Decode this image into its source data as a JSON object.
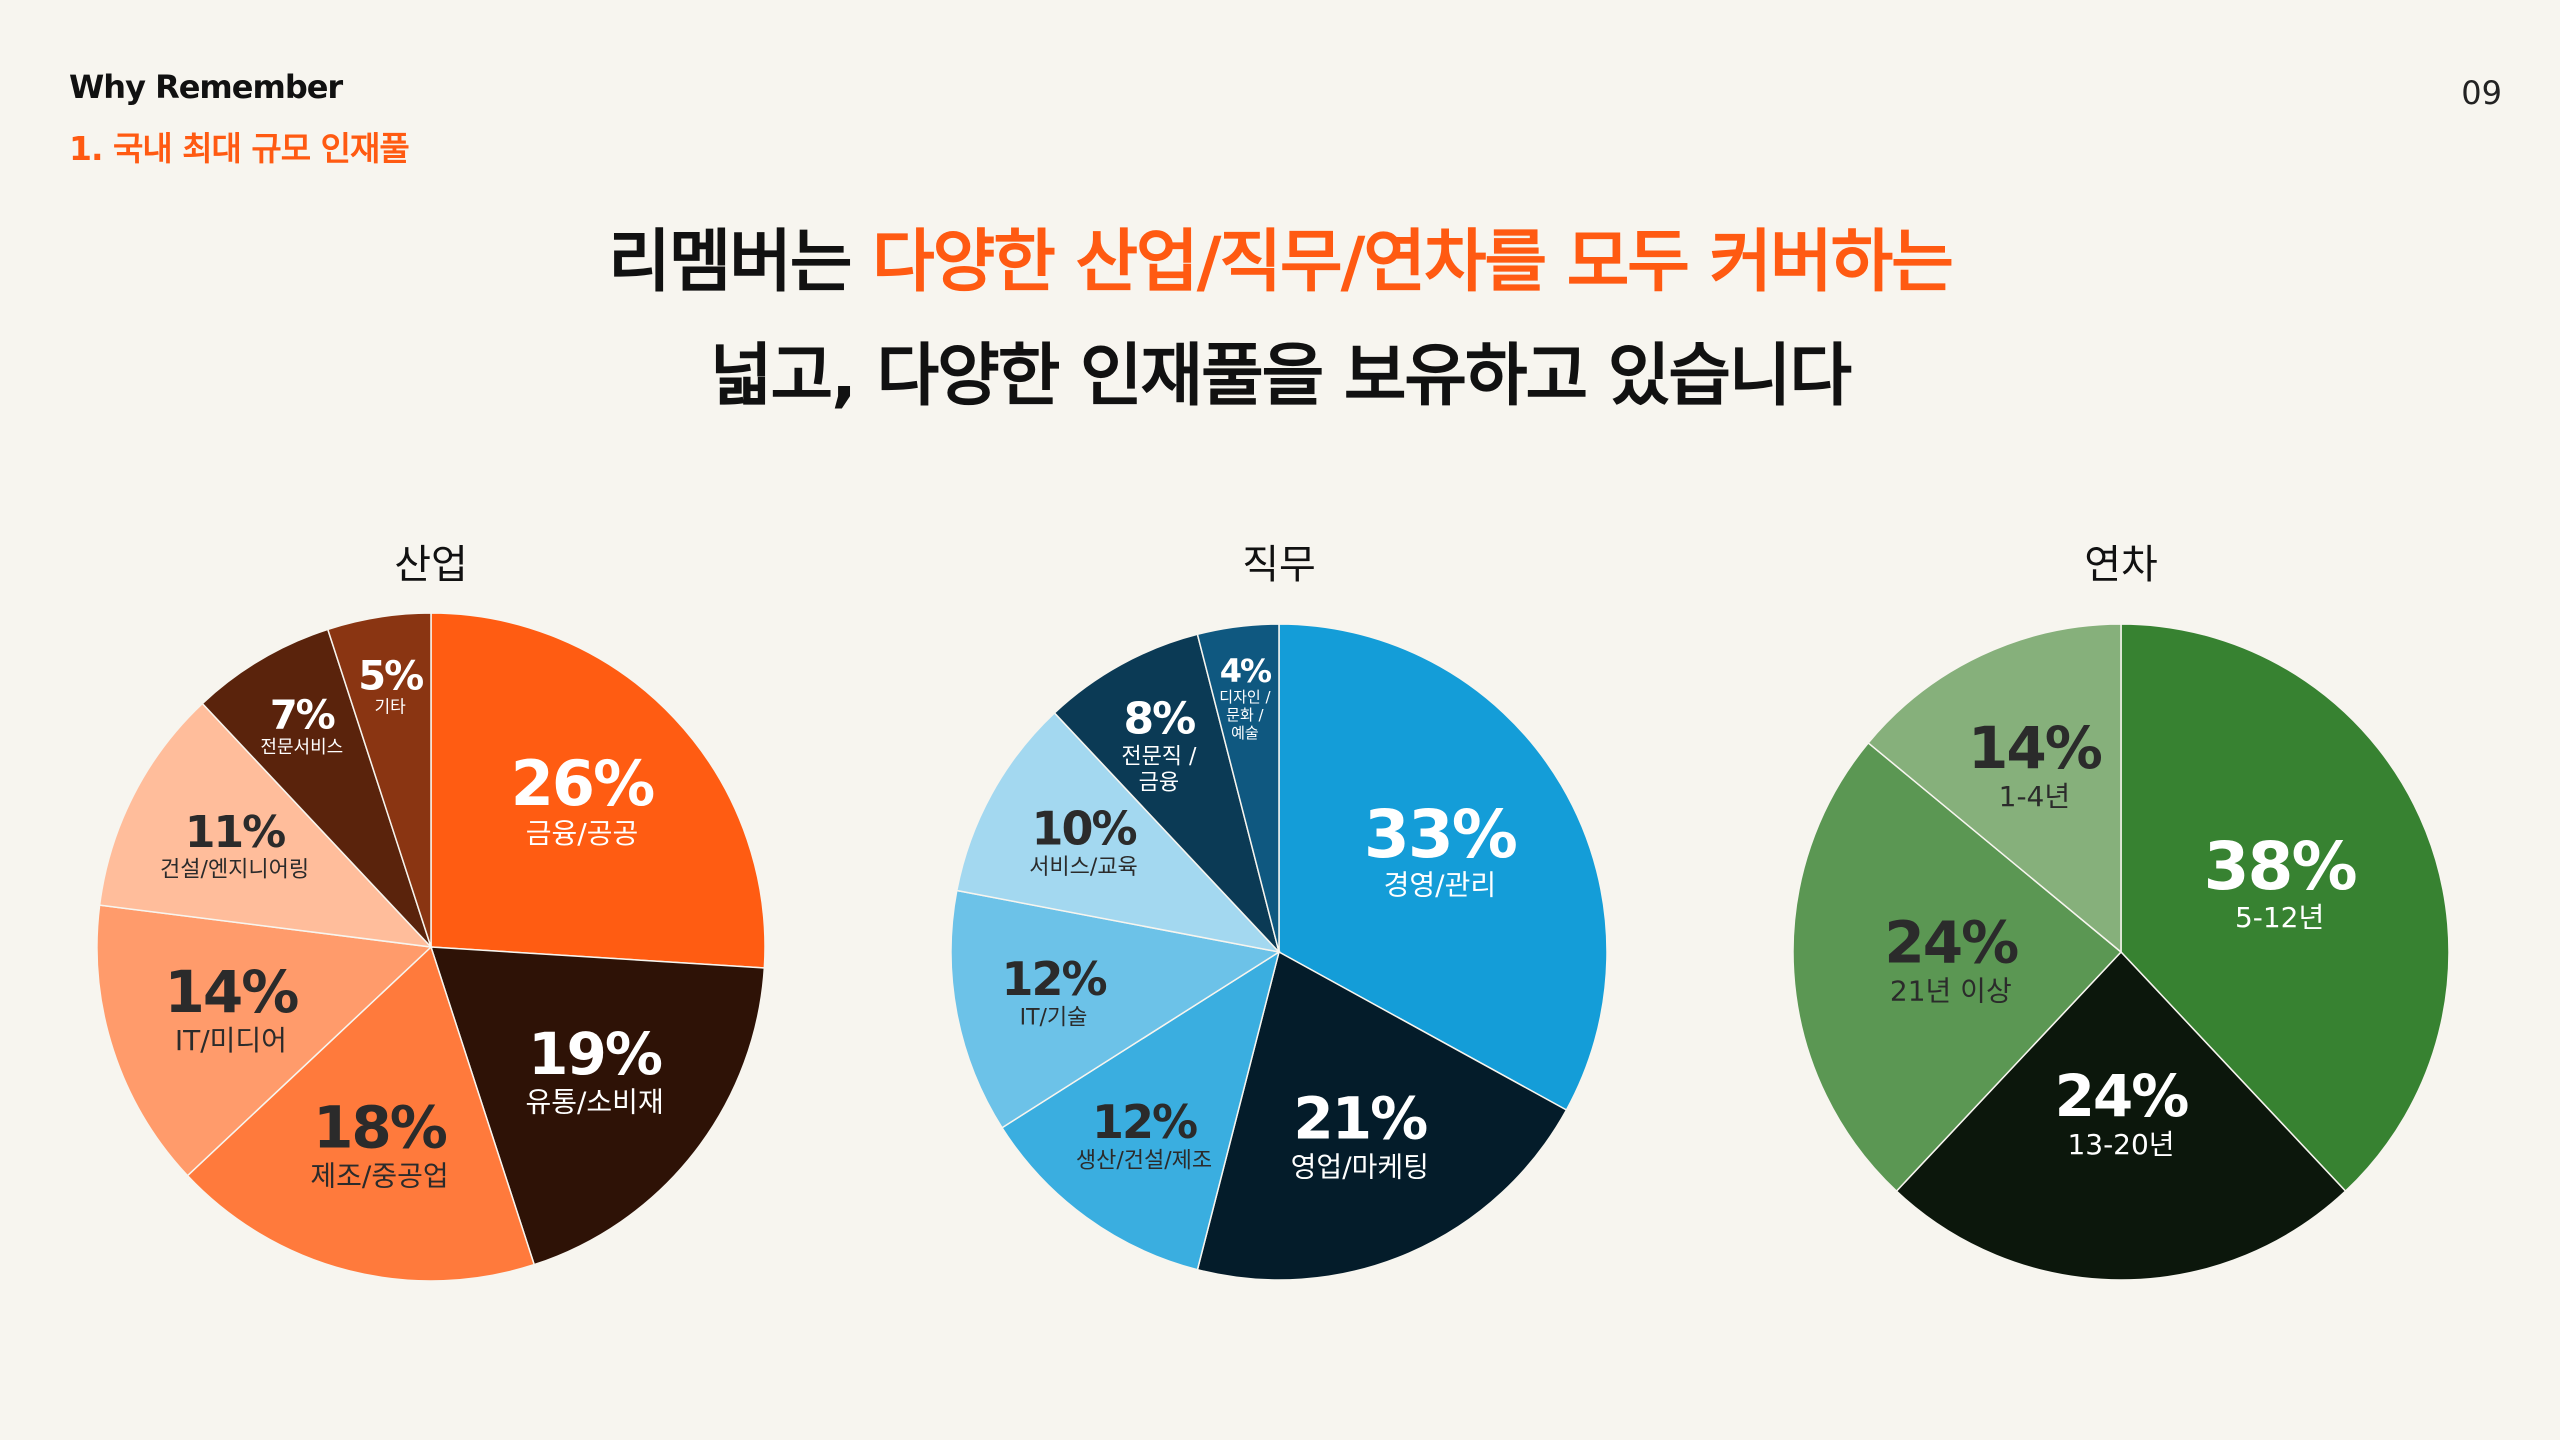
{
  "header": {
    "brand": "Why Remember",
    "section": "1. 국내 최대 규모 인재풀",
    "page_number": "09"
  },
  "headline": {
    "line1_pre": "리멤버는 ",
    "line1_accent": "다양한 산업/직무/연차를 모두 커버하는",
    "line2": "넓고, 다양한 인재풀을 보유하고 있습니다"
  },
  "colors": {
    "accent": "#ff5a12",
    "background": "#f7f5ef"
  },
  "chart_data": [
    {
      "type": "pie",
      "title": "산업",
      "slices": [
        {
          "pct": "26%",
          "label": "금융/공공",
          "value": 26,
          "color": "#ff5c12",
          "text": "#ffffff"
        },
        {
          "pct": "19%",
          "label": "유통/소비재",
          "value": 19,
          "color": "#2e1206",
          "text": "#ffffff"
        },
        {
          "pct": "18%",
          "label": "제조/중공업",
          "value": 18,
          "color": "#ff7a3c",
          "text": "#2b2b2b"
        },
        {
          "pct": "14%",
          "label": "IT/미디어",
          "value": 14,
          "color": "#ff9b6b",
          "text": "#2b2b2b"
        },
        {
          "pct": "11%",
          "label": "건설/엔지니어링",
          "value": 11,
          "color": "#ffbd9b",
          "text": "#2b2b2b"
        },
        {
          "pct": "7%",
          "label": "전문서비스",
          "value": 7,
          "color": "#5a230c",
          "text": "#ffffff"
        },
        {
          "pct": "5%",
          "label": "기타",
          "value": 5,
          "color": "#8a3512",
          "text": "#ffffff"
        }
      ]
    },
    {
      "type": "pie",
      "title": "직무",
      "slices": [
        {
          "pct": "33%",
          "label": "경영/관리",
          "value": 33,
          "color": "#149dd8",
          "text": "#ffffff"
        },
        {
          "pct": "21%",
          "label": "영업/마케팅",
          "value": 21,
          "color": "#041c2a",
          "text": "#ffffff"
        },
        {
          "pct": "12%",
          "label": "생산/건설/제조",
          "value": 12,
          "color": "#3aaee0",
          "text": "#2b2b2b"
        },
        {
          "pct": "12%",
          "label": "IT/기술",
          "value": 12,
          "color": "#6cc2e8",
          "text": "#2b2b2b"
        },
        {
          "pct": "10%",
          "label": "서비스/교육",
          "value": 10,
          "color": "#a3d8f0",
          "text": "#2b2b2b"
        },
        {
          "pct": "8%",
          "label": "전문직 / 금융",
          "value": 8,
          "color": "#0b3a55",
          "text": "#ffffff"
        },
        {
          "pct": "4%",
          "label": "디자인 / 문화 / 예술",
          "value": 4,
          "color": "#0f5880",
          "text": "#ffffff"
        }
      ]
    },
    {
      "type": "pie",
      "title": "연차",
      "slices": [
        {
          "pct": "38%",
          "label": "5-12년",
          "value": 38,
          "color": "#378231",
          "text": "#ffffff"
        },
        {
          "pct": "24%",
          "label": "13-20년",
          "value": 24,
          "color": "#0c170c",
          "text": "#ffffff"
        },
        {
          "pct": "24%",
          "label": "21년 이상",
          "value": 24,
          "color": "#5b9753",
          "text": "#2b2b2b"
        },
        {
          "pct": "14%",
          "label": "1-4년",
          "value": 14,
          "color": "#86b07b",
          "text": "#2b2b2b"
        }
      ]
    }
  ]
}
